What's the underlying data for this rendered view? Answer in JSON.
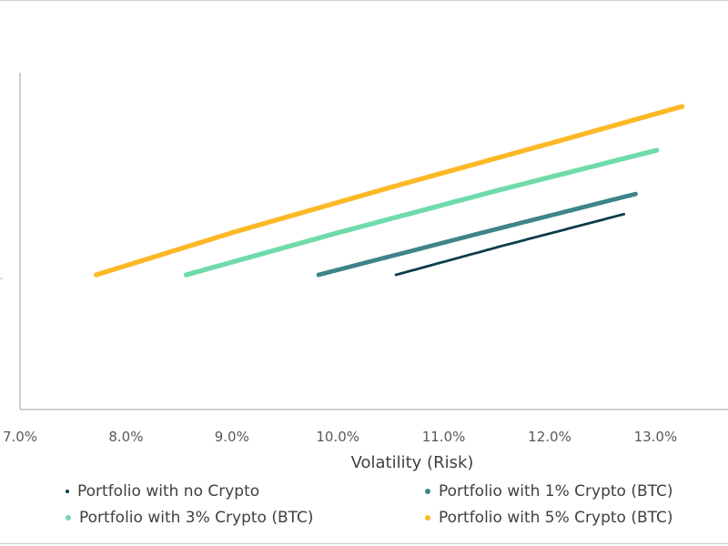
{
  "chart_data": {
    "type": "scatter",
    "title": "",
    "xlabel": "Volatility (Risk)",
    "ylabel": "",
    "xlim": [
      7.0,
      13.5
    ],
    "ylim": [
      0,
      1
    ],
    "x_ticks": [
      "7.0%",
      "8.0%",
      "9.0%",
      "10.0%",
      "11.0%",
      "12.0%",
      "13.0%"
    ],
    "grid": false,
    "legend_position": "bottom",
    "series": [
      {
        "name": "Portfolio with no Crypto",
        "color": "#0b3d4a",
        "x": [
          10.55,
          11.6,
          12.7
        ],
        "y": [
          0.4,
          0.49,
          0.58
        ]
      },
      {
        "name": "Portfolio with 1% Crypto (BTC)",
        "color": "#3f8488",
        "x": [
          9.82,
          11.3,
          12.81
        ],
        "y": [
          0.4,
          0.52,
          0.64
        ]
      },
      {
        "name": "Portfolio with 3% Crypto (BTC)",
        "color": "#6fdbaa",
        "x": [
          8.57,
          10.0,
          11.5,
          13.01
        ],
        "y": [
          0.4,
          0.525,
          0.65,
          0.77
        ]
      },
      {
        "name": "Portfolio with 5% Crypto (BTC)",
        "color": "#fdb827",
        "x": [
          7.72,
          9.0,
          10.5,
          12.0,
          13.25
        ],
        "y": [
          0.4,
          0.525,
          0.66,
          0.79,
          0.9
        ]
      }
    ]
  }
}
